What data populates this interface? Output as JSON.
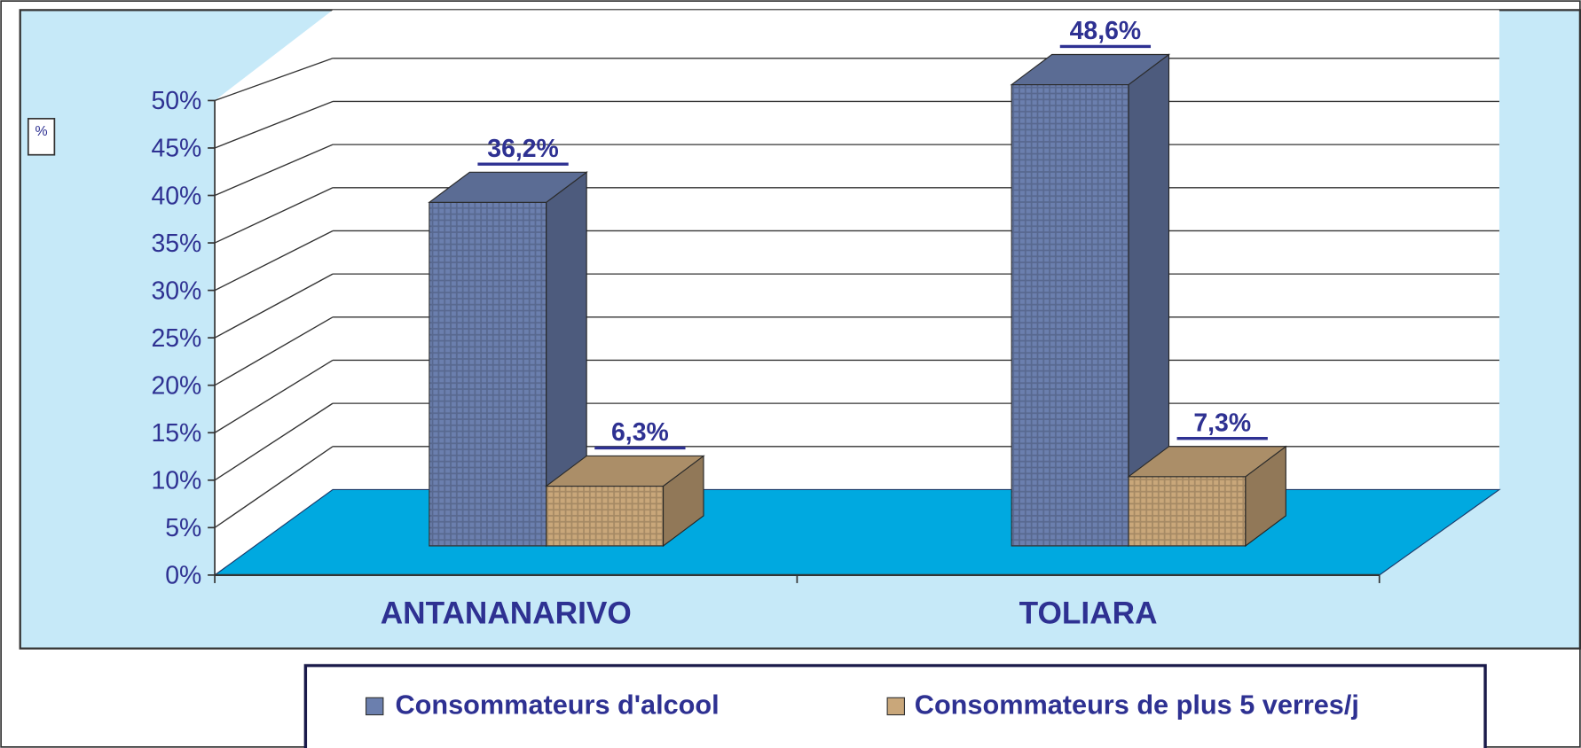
{
  "chart_data": {
    "type": "bar3d",
    "y_label": "%",
    "categories": [
      "ANTANANARIVO",
      "TOLIARA"
    ],
    "series": [
      {
        "name": "Consommateurs d'alcool",
        "color": "#6b7fae",
        "values": [
          36.2,
          48.6
        ],
        "value_labels": [
          "36,2%",
          "48,6%"
        ]
      },
      {
        "name": "Consommateurs de plus 5 verres/j",
        "color": "#c9a77a",
        "values": [
          6.3,
          7.3
        ],
        "value_labels": [
          "6,3%",
          "7,3%"
        ]
      }
    ],
    "ylim": [
      0,
      50
    ],
    "yticks": [
      {
        "value": 0,
        "label": "0%"
      },
      {
        "value": 5,
        "label": "5%"
      },
      {
        "value": 10,
        "label": "10%"
      },
      {
        "value": 15,
        "label": "15%"
      },
      {
        "value": 20,
        "label": "20%"
      },
      {
        "value": 25,
        "label": "25%"
      },
      {
        "value": 30,
        "label": "30%"
      },
      {
        "value": 35,
        "label": "35%"
      },
      {
        "value": 40,
        "label": "40%"
      },
      {
        "value": 45,
        "label": "45%"
      },
      {
        "value": 50,
        "label": "50%"
      }
    ],
    "grid": true,
    "legend": "bottom"
  }
}
